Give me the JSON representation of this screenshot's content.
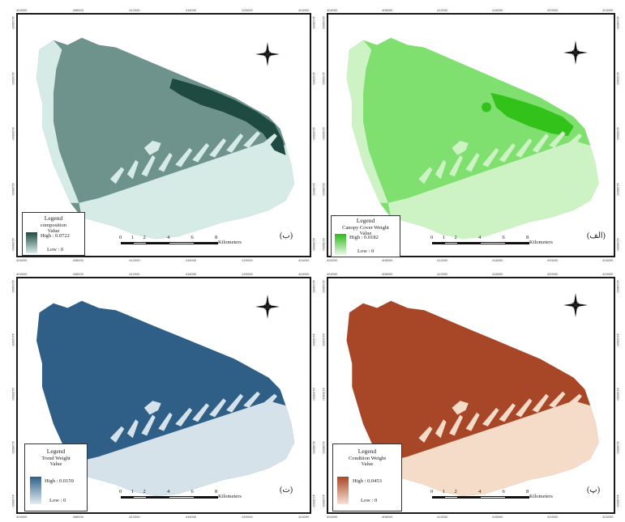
{
  "figure": {
    "x_ticks": [
      "404000",
      "408000",
      "412000",
      "416000",
      "420000",
      "424000"
    ],
    "y_ticks": [
      "4134000",
      "4132000",
      "4130000",
      "4128000",
      "4126000"
    ],
    "scale_ticks": [
      "0",
      "1",
      "2",
      "4",
      "6",
      "8"
    ],
    "panels": [
      {
        "id": "composition",
        "letter": "(ب)",
        "legend_title": "Legend",
        "legend_sub": "composition",
        "legend_value_label": "Value",
        "high_label": "High : 0.0722",
        "low_label": "Low : 0",
        "scale_unit": "Kilometers",
        "colors": {
          "high": "#1e4a42",
          "mid": "#6e938d",
          "low": "#d6ebe6",
          "ramp_high": "#1e4a42",
          "ramp_low": "#d9ecea"
        }
      },
      {
        "id": "canopy",
        "letter": "(الف)",
        "legend_title": "Legend",
        "legend_sub": "Canopy Cover Weight",
        "legend_value_label": "Value",
        "high_label": "High : 0.0182",
        "low_label": "Low : 0",
        "scale_unit": "Kilometers",
        "colors": {
          "high": "#33c21a",
          "mid": "#7fe070",
          "low": "#cdf2c4",
          "ramp_high": "#2fb81c",
          "ramp_low": "#eafae5"
        }
      },
      {
        "id": "trend",
        "letter": "(ت)",
        "legend_title": "Legend",
        "legend_sub": "Trend Weight",
        "legend_value_label": "Value",
        "high_label": "High : 0.0159",
        "low_label": "Low : 0",
        "scale_unit": "Kilometers",
        "colors": {
          "high": "#2f5f87",
          "mid": "#2f5f87",
          "low": "#d5e2ea",
          "ramp_high": "#2f5f87",
          "ramp_low": "#e3edf3"
        }
      },
      {
        "id": "condition",
        "letter": "(پ)",
        "legend_title": "Legend",
        "legend_sub": "Condition Weight",
        "legend_value_label": "Value",
        "high_label": "High : 0.0453",
        "low_label": "Low : 0",
        "scale_unit": "Kilometers",
        "colors": {
          "high": "#a84628",
          "mid": "#a84628",
          "low": "#f5dcc8",
          "ramp_high": "#a84628",
          "ramp_low": "#f7e1d3"
        }
      }
    ]
  }
}
